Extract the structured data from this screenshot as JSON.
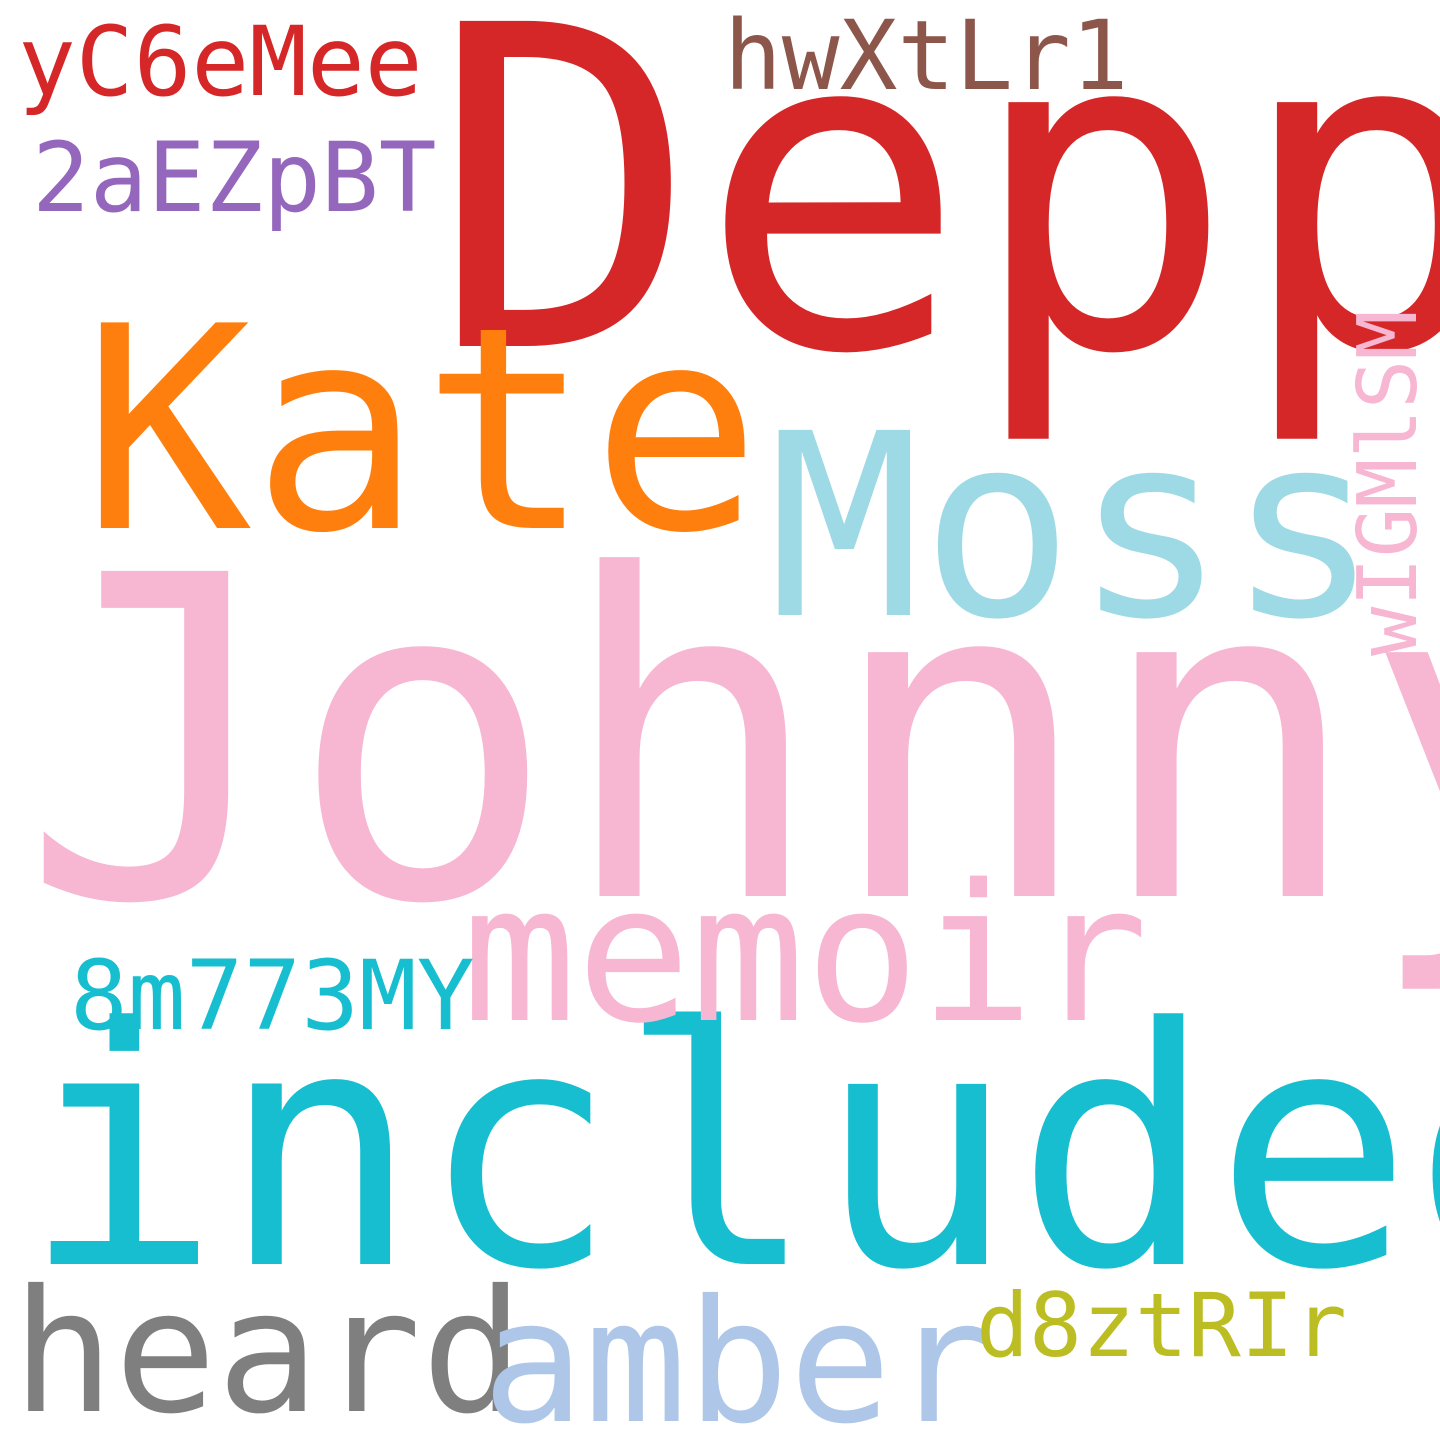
{
  "words": {
    "johnny": {
      "text": "Johnny",
      "color": "#f7b6d2"
    },
    "depp": {
      "text": "Depp",
      "color": "#d62728"
    },
    "included": {
      "text": "included",
      "color": "#17becf"
    },
    "kate": {
      "text": "Kate",
      "color": "#ff7f0e"
    },
    "moss": {
      "text": "Moss",
      "color": "#9edae5"
    },
    "memoir": {
      "text": "memoir",
      "color": "#f7b6d2"
    },
    "heard": {
      "text": "heard",
      "color": "#7f7f7f"
    },
    "amber": {
      "text": "amber",
      "color": "#aec7e8"
    },
    "hwxtlr1": {
      "text": "hwXtLr1",
      "color": "#8c564b"
    },
    "yc6emee": {
      "text": "yC6eMee",
      "color": "#d62728"
    },
    "2aezpbt": {
      "text": "2aEZpBT",
      "color": "#9467bd"
    },
    "8m773my": {
      "text": "8m773MY",
      "color": "#17becf"
    },
    "d8ztrir": {
      "text": "d8ztRIr",
      "color": "#bcbd22"
    },
    "wigmlsm": {
      "text": "wIGMlSM",
      "color": "#f7b6d2"
    }
  }
}
